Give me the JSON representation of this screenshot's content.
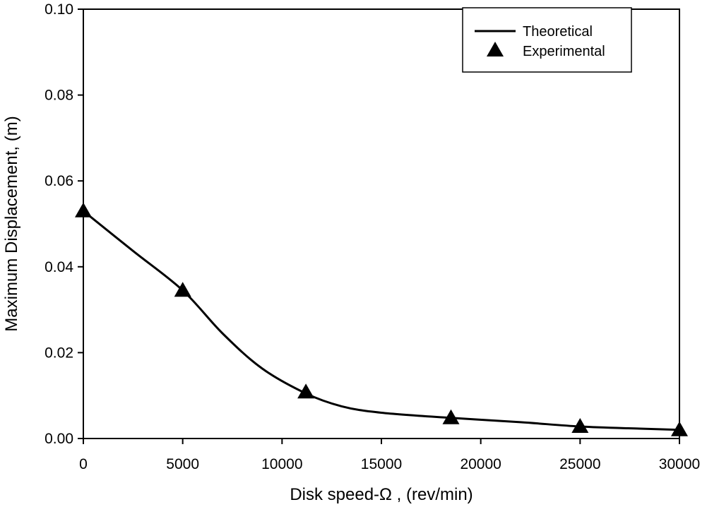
{
  "chart_data": {
    "type": "line",
    "title": "",
    "xlabel": "Disk speed-Ω , (rev/min)",
    "ylabel": "Maximum Displacement, (m)",
    "xlim": [
      0,
      30000
    ],
    "ylim": [
      0,
      0.1
    ],
    "xticks": [
      0,
      5000,
      10000,
      15000,
      20000,
      25000,
      30000
    ],
    "xtick_labels": [
      "0",
      "5000",
      "10000",
      "15000",
      "20000",
      "25000",
      "30000"
    ],
    "yticks": [
      0,
      0.02,
      0.04,
      0.06,
      0.08,
      0.1
    ],
    "ytick_labels": [
      "0.00",
      "0.02",
      "0.04",
      "0.06",
      "0.08",
      "0.10"
    ],
    "grid": false,
    "legend_position": "top-right",
    "series": [
      {
        "name": "Theoretical",
        "kind": "line",
        "x": [
          0,
          2500,
          5000,
          7000,
          9000,
          11200,
          13000,
          15000,
          18500,
          22000,
          25000,
          28000,
          30000
        ],
        "y": [
          0.053,
          0.0437,
          0.0345,
          0.0245,
          0.0163,
          0.0105,
          0.0075,
          0.006,
          0.0048,
          0.0038,
          0.0028,
          0.0023,
          0.002
        ]
      },
      {
        "name": "Experimental",
        "kind": "marker",
        "marker": "triangle",
        "x": [
          0,
          5000,
          11200,
          18500,
          25000,
          30000
        ],
        "y": [
          0.053,
          0.0345,
          0.0108,
          0.0048,
          0.0028,
          0.002
        ]
      }
    ]
  }
}
